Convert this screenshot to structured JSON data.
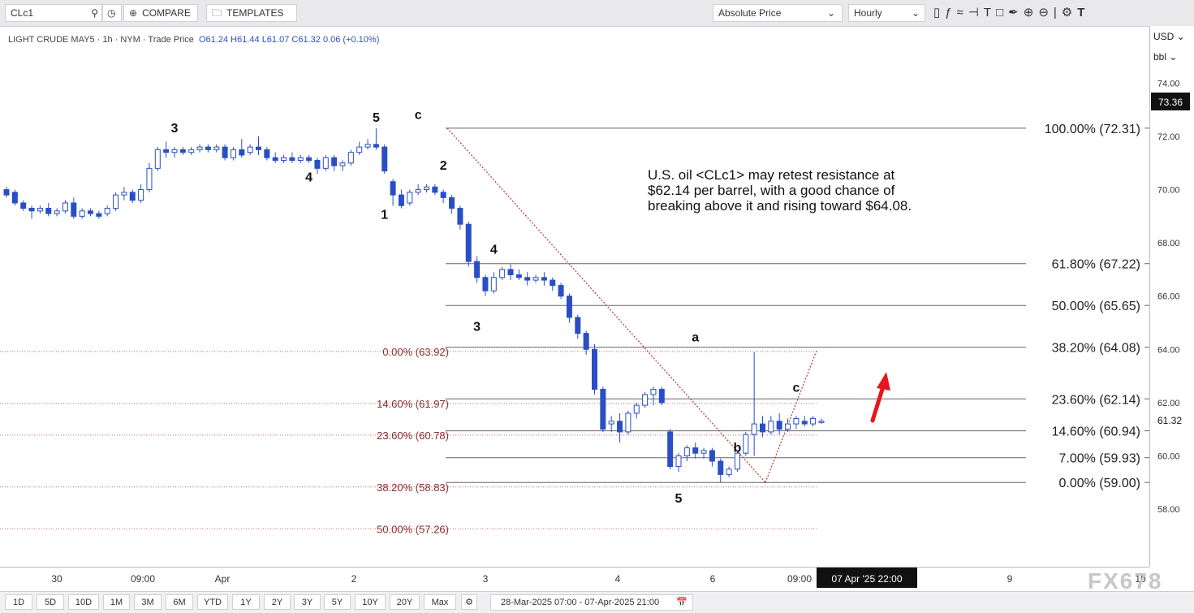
{
  "toolbar": {
    "symbol": "CLc1",
    "compare_label": "COMPARE",
    "templates_label": "TEMPLATES",
    "price_mode": "Absolute Price",
    "interval": "Hourly"
  },
  "info": {
    "name": "LIGHT CRUDE MAY5",
    "interval": "1h",
    "exchange": "NYM",
    "type": "Trade Price",
    "open": "O61.24",
    "high": "H61.44",
    "low": "L61.07",
    "close": "C61.32",
    "change": "0.06 (+0.10%)"
  },
  "axis": {
    "currency": "USD",
    "unit": "bbl",
    "current_price": "73.36",
    "last_price": "61.32",
    "crosshair_time": "07 Apr '25   22:00"
  },
  "ranges": [
    "1D",
    "5D",
    "10D",
    "1M",
    "3M",
    "6M",
    "YTD",
    "1Y",
    "2Y",
    "3Y",
    "5Y",
    "10Y",
    "20Y",
    "Max"
  ],
  "date_range": "28-Mar-2025 07:00 - 07-Apr-2025 21:00",
  "watermark": "FX678",
  "chart_data": {
    "type": "candlestick",
    "ylim": [
      56.7,
      75.0
    ],
    "y_ticks": [
      "74.00",
      "72.00",
      "70.00",
      "68.00",
      "66.00",
      "64.00",
      "62.00",
      "60.00",
      "58.00"
    ],
    "x_tick_labels": [
      "30",
      "09:00",
      "Apr",
      "2",
      "3",
      "4",
      "6",
      "09:00",
      "9",
      "10"
    ],
    "annotation_text": "U.S. oil <CLc1> may retest resistance at $62.14 per barrel, with a good chance of breaking above it and rising toward $64.08.",
    "fib_main": [
      {
        "label": "100.00% (72.31)",
        "value": 72.31
      },
      {
        "label": "61.80% (67.22)",
        "value": 67.22
      },
      {
        "label": "50.00% (65.65)",
        "value": 65.65
      },
      {
        "label": "38.20% (64.08)",
        "value": 64.08
      },
      {
        "label": "23.60% (62.14)",
        "value": 62.14
      },
      {
        "label": "14.60% (60.94)",
        "value": 60.94
      },
      {
        "label": "7.00% (59.93)",
        "value": 59.93
      },
      {
        "label": "0.00% (59.00)",
        "value": 59.0
      }
    ],
    "fib_secondary": [
      {
        "label": "0.00% (63.92)",
        "value": 63.92
      },
      {
        "label": "14.60% (61.97)",
        "value": 61.97
      },
      {
        "label": "23.60% (60.78)",
        "value": 60.78
      },
      {
        "label": "38.20% (58.83)",
        "value": 58.83
      },
      {
        "label": "50.00% (57.26)",
        "value": 57.26
      }
    ],
    "wave_labels": [
      {
        "text": "3",
        "i": 20,
        "price": 72.15
      },
      {
        "text": "4",
        "i": 36,
        "price": 70.3
      },
      {
        "text": "5",
        "i": 44,
        "price": 72.55
      },
      {
        "text": "c",
        "i": 49,
        "price": 72.65
      },
      {
        "text": "1",
        "i": 45,
        "price": 68.9
      },
      {
        "text": "2",
        "i": 52,
        "price": 70.75
      },
      {
        "text": "4",
        "i": 58,
        "price": 67.6
      },
      {
        "text": "3",
        "i": 56,
        "price": 64.7
      },
      {
        "text": "a",
        "i": 82,
        "price": 64.3
      },
      {
        "text": "5",
        "i": 80,
        "price": 58.25
      },
      {
        "text": "b",
        "i": 87,
        "price": 60.15
      },
      {
        "text": "c",
        "i": 94,
        "price": 62.4
      }
    ],
    "candles": [
      [
        70.0,
        70.1,
        69.8,
        69.7
      ],
      [
        69.9,
        70.0,
        69.5,
        69.4
      ],
      [
        69.5,
        69.6,
        69.3,
        69.2
      ],
      [
        69.3,
        69.4,
        69.2,
        68.9
      ],
      [
        69.2,
        69.4,
        69.3,
        69.1
      ],
      [
        69.3,
        69.5,
        69.1,
        69.0
      ],
      [
        69.1,
        69.3,
        69.2,
        69.0
      ],
      [
        69.2,
        69.6,
        69.5,
        69.1
      ],
      [
        69.5,
        69.7,
        69.0,
        68.9
      ],
      [
        69.0,
        69.3,
        69.2,
        68.9
      ],
      [
        69.2,
        69.3,
        69.1,
        69.0
      ],
      [
        69.1,
        69.2,
        69.0,
        68.9
      ],
      [
        69.1,
        69.4,
        69.3,
        69.0
      ],
      [
        69.3,
        69.9,
        69.8,
        69.2
      ],
      [
        69.8,
        70.1,
        69.9,
        69.6
      ],
      [
        69.9,
        70.0,
        69.6,
        69.5
      ],
      [
        69.6,
        70.2,
        70.0,
        69.5
      ],
      [
        70.0,
        71.0,
        70.8,
        69.9
      ],
      [
        70.8,
        71.6,
        71.5,
        70.7
      ],
      [
        71.5,
        71.8,
        71.4,
        71.2
      ],
      [
        71.4,
        71.6,
        71.5,
        71.2
      ],
      [
        71.5,
        71.6,
        71.4,
        71.3
      ],
      [
        71.4,
        71.6,
        71.5,
        71.3
      ],
      [
        71.5,
        71.7,
        71.6,
        71.4
      ],
      [
        71.6,
        71.7,
        71.5,
        71.4
      ],
      [
        71.5,
        71.7,
        71.6,
        71.4
      ],
      [
        71.6,
        71.7,
        71.2,
        71.1
      ],
      [
        71.2,
        71.6,
        71.5,
        71.1
      ],
      [
        71.5,
        71.9,
        71.3,
        71.2
      ],
      [
        71.4,
        71.7,
        71.6,
        71.3
      ],
      [
        71.6,
        72.0,
        71.5,
        71.3
      ],
      [
        71.5,
        71.6,
        71.2,
        71.1
      ],
      [
        71.2,
        71.4,
        71.1,
        71.0
      ],
      [
        71.1,
        71.3,
        71.2,
        71.0
      ],
      [
        71.2,
        71.4,
        71.1,
        71.0
      ],
      [
        71.1,
        71.3,
        71.2,
        71.0
      ],
      [
        71.2,
        71.3,
        71.1,
        71.0
      ],
      [
        71.1,
        71.2,
        70.8,
        70.6
      ],
      [
        70.8,
        71.3,
        71.2,
        70.7
      ],
      [
        71.2,
        71.3,
        70.9,
        70.7
      ],
      [
        70.9,
        71.1,
        71.0,
        70.7
      ],
      [
        71.0,
        71.5,
        71.4,
        70.9
      ],
      [
        71.4,
        71.8,
        71.6,
        71.3
      ],
      [
        71.6,
        71.9,
        71.7,
        71.5
      ],
      [
        71.7,
        72.3,
        71.6,
        71.5
      ],
      [
        71.6,
        71.7,
        70.7,
        70.6
      ],
      [
        70.3,
        70.4,
        69.8,
        69.4
      ],
      [
        69.8,
        70.0,
        69.4,
        69.3
      ],
      [
        69.5,
        70.0,
        69.9,
        69.4
      ],
      [
        69.9,
        70.2,
        70.0,
        69.8
      ],
      [
        70.0,
        70.2,
        70.1,
        69.9
      ],
      [
        70.1,
        70.2,
        69.9,
        69.8
      ],
      [
        69.9,
        70.0,
        69.7,
        69.5
      ],
      [
        69.7,
        69.8,
        69.3,
        69.1
      ],
      [
        69.3,
        69.4,
        68.7,
        68.5
      ],
      [
        68.7,
        68.8,
        67.3,
        67.1
      ],
      [
        67.3,
        67.5,
        66.7,
        66.5
      ],
      [
        66.7,
        66.8,
        66.2,
        66.0
      ],
      [
        66.2,
        66.9,
        66.7,
        66.1
      ],
      [
        66.7,
        67.1,
        67.0,
        66.6
      ],
      [
        67.0,
        67.2,
        66.8,
        66.6
      ],
      [
        66.8,
        67.0,
        66.7,
        66.6
      ],
      [
        66.7,
        66.9,
        66.6,
        66.4
      ],
      [
        66.6,
        66.8,
        66.7,
        66.5
      ],
      [
        66.7,
        66.9,
        66.6,
        66.4
      ],
      [
        66.6,
        66.7,
        66.4,
        66.2
      ],
      [
        66.4,
        66.5,
        66.0,
        65.9
      ],
      [
        66.0,
        66.1,
        65.2,
        65.0
      ],
      [
        65.2,
        65.3,
        64.6,
        64.4
      ],
      [
        64.6,
        64.7,
        64.0,
        63.8
      ],
      [
        64.0,
        64.2,
        62.5,
        62.3
      ],
      [
        62.5,
        62.6,
        61.0,
        60.9
      ],
      [
        61.2,
        61.5,
        61.3,
        60.9
      ],
      [
        61.3,
        61.6,
        60.9,
        60.5
      ],
      [
        60.9,
        61.7,
        61.6,
        60.8
      ],
      [
        61.6,
        62.0,
        61.9,
        61.4
      ],
      [
        61.9,
        62.4,
        62.3,
        61.8
      ],
      [
        62.3,
        62.6,
        62.5,
        61.9
      ],
      [
        62.5,
        62.6,
        62.0,
        61.9
      ],
      [
        60.9,
        61.0,
        59.6,
        59.5
      ],
      [
        59.6,
        60.1,
        60.0,
        59.4
      ],
      [
        60.0,
        60.4,
        60.3,
        59.8
      ],
      [
        60.3,
        60.5,
        60.1,
        59.9
      ],
      [
        60.1,
        60.3,
        60.2,
        59.9
      ],
      [
        60.2,
        60.3,
        59.8,
        59.6
      ],
      [
        59.8,
        59.9,
        59.3,
        59.0
      ],
      [
        59.3,
        59.6,
        59.5,
        59.2
      ],
      [
        59.5,
        60.2,
        60.1,
        59.4
      ],
      [
        60.1,
        60.9,
        60.8,
        60.0
      ],
      [
        60.8,
        63.9,
        61.2,
        60.0
      ],
      [
        61.2,
        61.5,
        60.9,
        60.7
      ],
      [
        60.9,
        61.5,
        61.3,
        60.8
      ],
      [
        61.3,
        61.6,
        61.0,
        60.8
      ],
      [
        61.0,
        61.4,
        61.2,
        60.9
      ],
      [
        61.2,
        61.5,
        61.4,
        61.0
      ],
      [
        61.3,
        61.5,
        61.2,
        61.1
      ],
      [
        61.2,
        61.5,
        61.4,
        61.1
      ],
      [
        61.3,
        61.4,
        61.3,
        61.2
      ]
    ]
  }
}
